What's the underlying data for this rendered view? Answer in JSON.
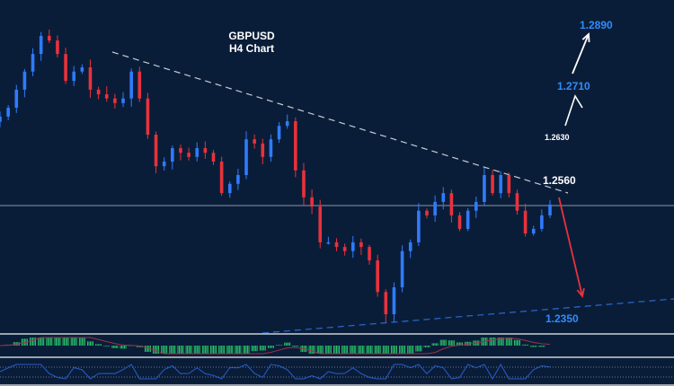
{
  "chart_data": {
    "type": "candlestick",
    "title": "GBPUSD",
    "subtitle": "H4 Chart",
    "ylim": [
      1.23,
      1.292
    ],
    "closes": [
      1.2732,
      1.2749,
      1.2784,
      1.2819,
      1.2853,
      1.2888,
      1.2879,
      1.2853,
      1.2801,
      1.2819,
      1.2827,
      1.2784,
      1.2775,
      1.2767,
      1.2758,
      1.2767,
      1.2819,
      1.2767,
      1.2697,
      1.2636,
      1.2645,
      1.2671,
      1.2662,
      1.2654,
      1.2671,
      1.2662,
      1.2645,
      1.2584,
      1.2602,
      1.2619,
      1.2688,
      1.268,
      1.2654,
      1.2688,
      1.2714,
      1.2723,
      1.2628,
      1.2576,
      1.2558,
      1.2489,
      1.2489,
      1.248,
      1.2472,
      1.2489,
      1.248,
      1.2454,
      1.2393,
      1.235,
      1.2402,
      1.2472,
      1.2489,
      1.255,
      1.2541,
      1.2567,
      1.2584,
      1.2541,
      1.2515,
      1.255,
      1.2567,
      1.2619,
      1.2584,
      1.2619,
      1.2584,
      1.255,
      1.2506,
      1.2515,
      1.2541,
      1.2562
    ],
    "horizontal_level": 1.256,
    "levels": {
      "target_high": "1.2890",
      "target_mid": "1.2710",
      "resistance_minor": "1.2630",
      "pivot": "1.2560",
      "support": "1.2350"
    },
    "colors": {
      "background": "#0a1d38",
      "bull": "#2f7bff",
      "bear": "#e8323c",
      "label_blue": "#2f8cff",
      "macd_hist": "#27c46a",
      "signal": "#a0304a",
      "rsi": "#2a5ccc"
    }
  }
}
